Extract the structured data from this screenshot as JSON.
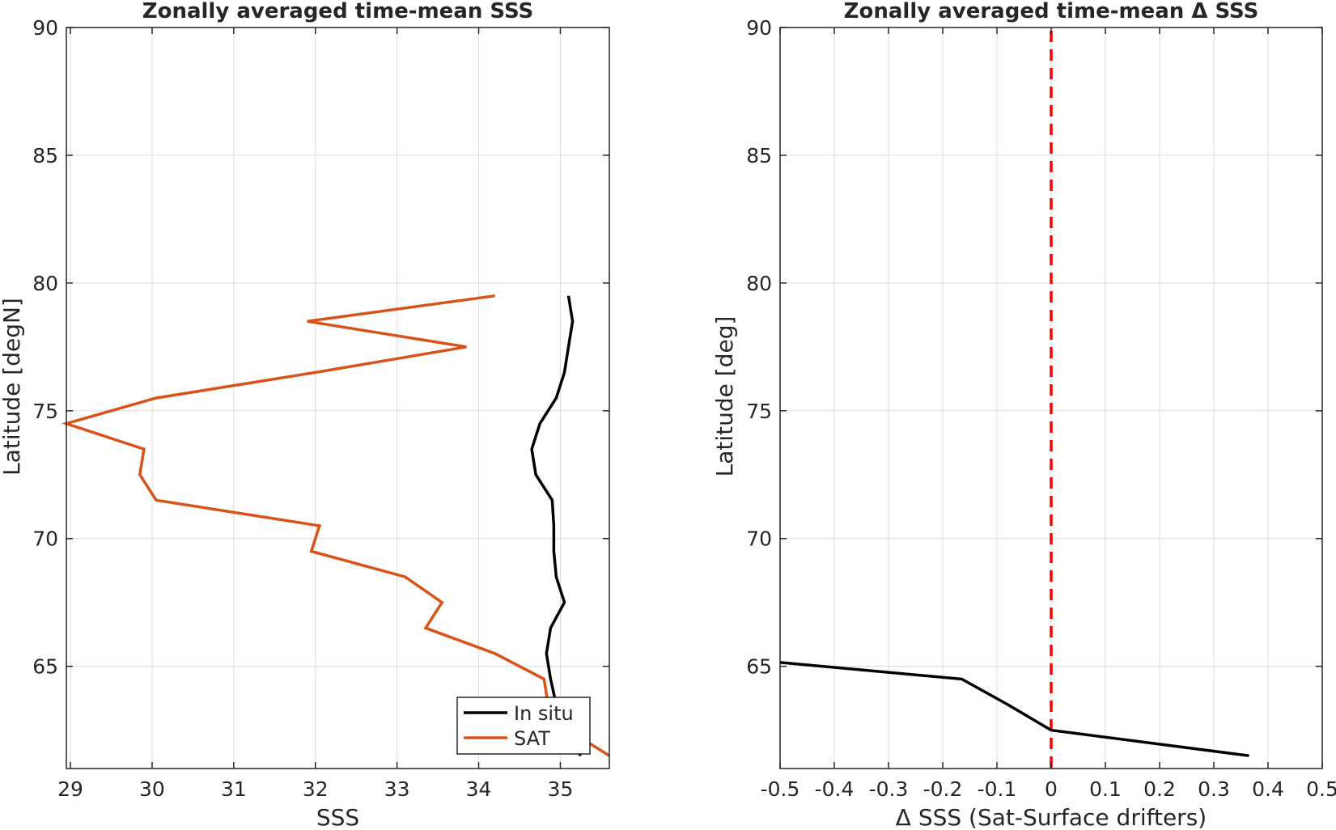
{
  "chart_data": [
    {
      "type": "line",
      "title": "Zonally averaged time-mean SSS",
      "xlabel": "SSS",
      "ylabel": "Latitude [degN]",
      "xlim": [
        28.95,
        35.6
      ],
      "ylim": [
        61,
        90
      ],
      "xticks": [
        29,
        30,
        31,
        32,
        33,
        34,
        35
      ],
      "yticks": [
        65,
        70,
        75,
        80,
        85,
        90
      ],
      "grid": true,
      "legend": "bottom-right",
      "series": [
        {
          "name": "In situ",
          "color": "#000000",
          "x": [
            35.1,
            35.15,
            35.1,
            35.05,
            34.95,
            34.75,
            34.65,
            34.7,
            34.9,
            34.92,
            34.92,
            34.95,
            35.05,
            34.88,
            34.83,
            34.88,
            34.95,
            35.0,
            35.25
          ],
          "y": [
            79.5,
            78.5,
            77.5,
            76.5,
            75.5,
            74.5,
            73.5,
            72.5,
            71.5,
            70.5,
            69.5,
            68.5,
            67.5,
            66.5,
            65.5,
            64.5,
            63.5,
            62.5,
            61.5
          ]
        },
        {
          "name": "SAT",
          "color": "#d95319",
          "x": [
            34.2,
            31.9,
            33.85,
            32.0,
            30.05,
            28.95,
            29.9,
            29.85,
            30.05,
            32.05,
            31.95,
            33.1,
            33.55,
            33.35,
            34.2,
            34.8,
            34.85,
            35.1,
            35.6
          ],
          "y": [
            79.5,
            78.5,
            77.5,
            76.5,
            75.5,
            74.5,
            73.5,
            72.5,
            71.5,
            70.5,
            69.5,
            68.5,
            67.5,
            66.5,
            65.5,
            64.5,
            63.5,
            62.5,
            61.5
          ]
        }
      ]
    },
    {
      "type": "line",
      "title": "Zonally averaged time-mean Δ SSS",
      "xlabel": "Δ SSS (Sat-Surface drifters)",
      "ylabel": "Latitude [deg]",
      "xlim": [
        -0.5,
        0.5
      ],
      "ylim": [
        61,
        90
      ],
      "xticks": [
        -0.5,
        -0.4,
        -0.3,
        -0.2,
        -0.1,
        0,
        0.1,
        0.2,
        0.3,
        0.4,
        0.5
      ],
      "yticks": [
        65,
        70,
        75,
        80,
        85,
        90
      ],
      "grid": true,
      "reference_line": {
        "x": 0,
        "color": "#ff0000",
        "style": "dashed"
      },
      "series": [
        {
          "color": "#000000",
          "x": [
            -0.5,
            -0.165,
            -0.08,
            0.0,
            0.365
          ],
          "y": [
            65.15,
            64.5,
            63.5,
            62.5,
            61.5
          ]
        }
      ]
    }
  ]
}
